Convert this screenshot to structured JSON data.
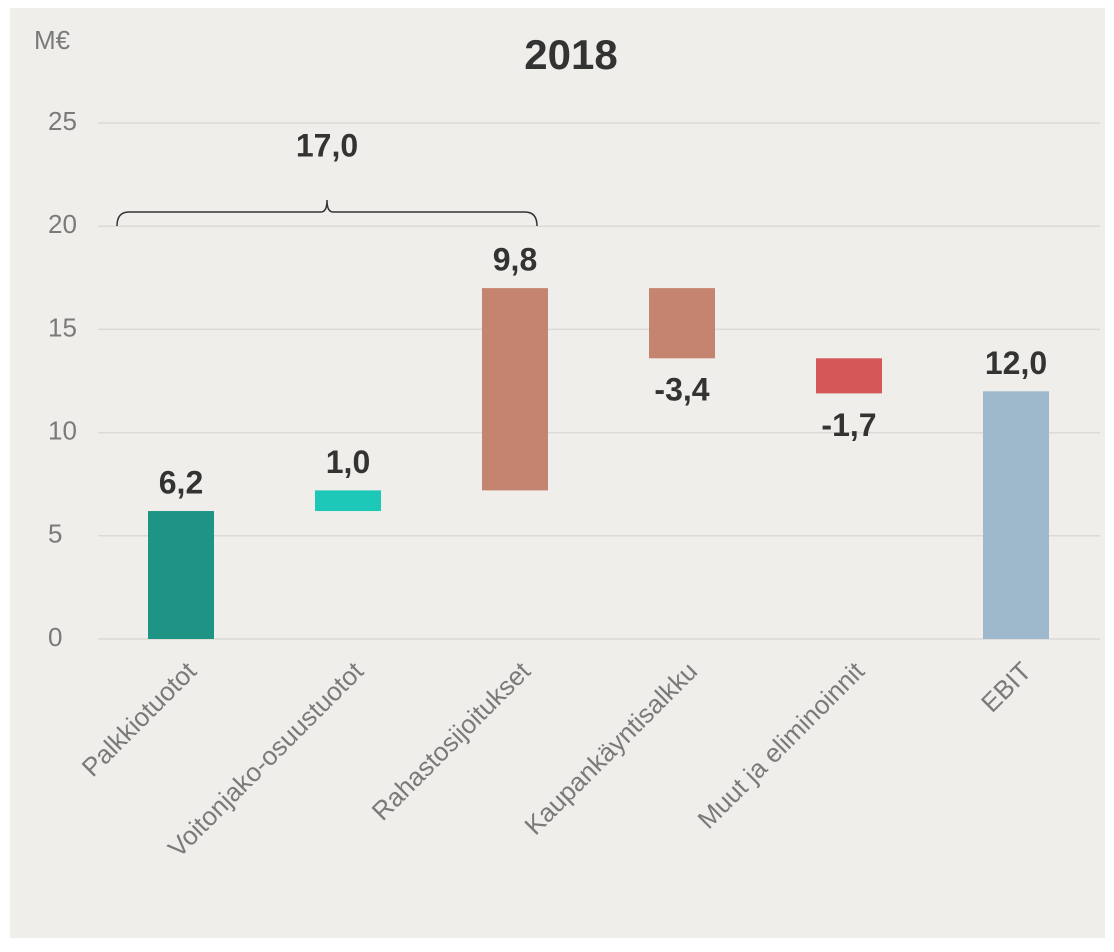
{
  "chart_data": {
    "type": "waterfall",
    "title": "2018",
    "y_unit": "M€",
    "categories": [
      "Palkkiotuotot",
      "Voitonjako-osuustuotot",
      "Rahastosijoitukset",
      "Kaupankäyntisalkku",
      "Muut ja eliminoinnit",
      "EBIT"
    ],
    "values": [
      6.2,
      1.0,
      9.8,
      -3.4,
      -1.7,
      12.0
    ],
    "value_labels": [
      "6,2",
      "1,0",
      "9,8",
      "-3,4",
      "-1,7",
      "12,0"
    ],
    "measures": [
      "relative",
      "relative",
      "relative",
      "relative",
      "relative",
      "total"
    ],
    "colors": [
      "#1e9485",
      "#1ec8b8",
      "#c48470",
      "#c48470",
      "#d65757",
      "#9fb9cc"
    ],
    "ylim": [
      0,
      25
    ],
    "yticks": [
      0,
      5,
      10,
      15,
      20,
      25
    ],
    "grid": true,
    "annotations": [
      {
        "value": 17.0,
        "label": "17,0",
        "span": [
          "Palkkiotuotot",
          "Rahastosijoitukset"
        ]
      }
    ]
  }
}
